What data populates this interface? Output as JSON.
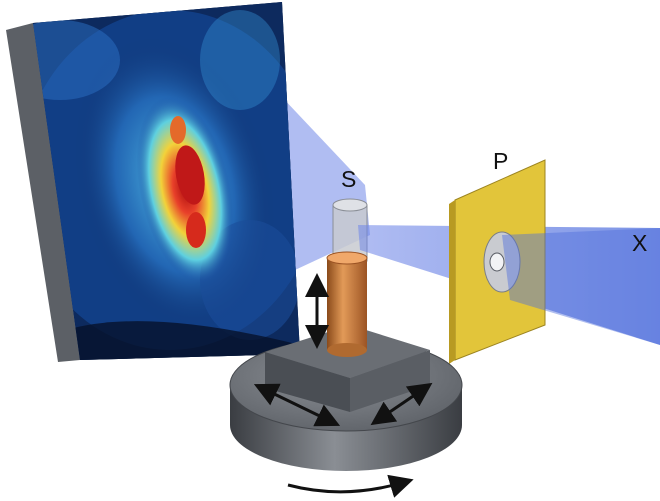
{
  "labels": {
    "sample": "S",
    "plate": "P",
    "xray": "X"
  },
  "colors": {
    "beam": "#5a78e0",
    "detector_frame": "#6a6e74",
    "detector_background": "#0a1a3a",
    "plate": "#e2c53a",
    "pin": "#c97a3a",
    "stage": "#5a5e64",
    "arrows": "#111111"
  },
  "icons": {
    "rotation": "curved-arrow-icon",
    "translation": "double-arrow-icon"
  }
}
